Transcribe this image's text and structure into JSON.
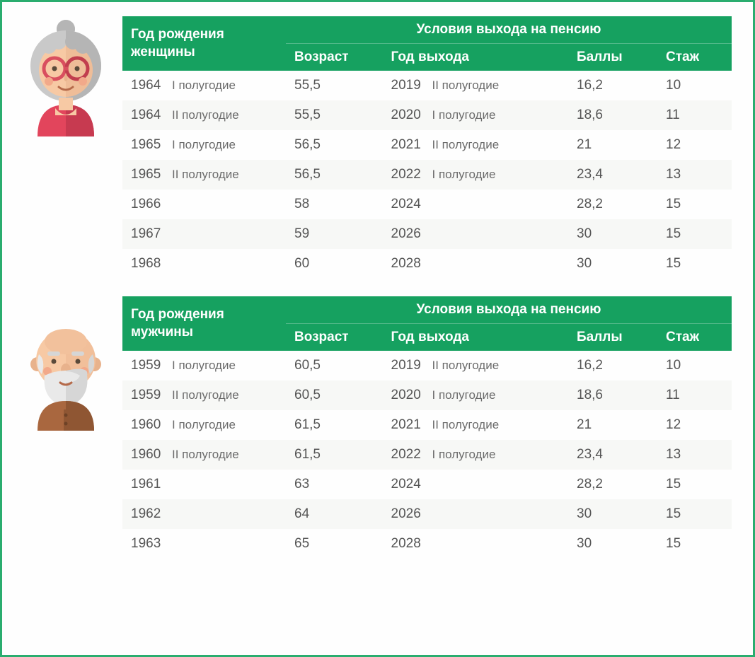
{
  "colors": {
    "frame_border": "#2aad6f",
    "header_bg": "#16a160",
    "header_text": "#ffffff",
    "row_alt_bg": "#f7f8f6",
    "cell_text": "#555555",
    "half_text": "#6b6b6b"
  },
  "tables": {
    "women": {
      "title": "Год рождения женщины",
      "group_title": "Условия выхода на пенсию",
      "columns": [
        "Возраст",
        "Год выхода",
        "Баллы",
        "Стаж"
      ],
      "rows": [
        {
          "year": "1964",
          "half": "I полугодие",
          "age": "55,5",
          "out_year": "2019",
          "out_half": "II полугодие",
          "points": "16,2",
          "stazh": "10"
        },
        {
          "year": "1964",
          "half": "II полугодие",
          "age": "55,5",
          "out_year": "2020",
          "out_half": "I полугодие",
          "points": "18,6",
          "stazh": "11"
        },
        {
          "year": "1965",
          "half": "I полугодие",
          "age": "56,5",
          "out_year": "2021",
          "out_half": "II полугодие",
          "points": "21",
          "stazh": "12"
        },
        {
          "year": "1965",
          "half": "II полугодие",
          "age": "56,5",
          "out_year": "2022",
          "out_half": "I полугодие",
          "points": "23,4",
          "stazh": "13"
        },
        {
          "year": "1966",
          "half": "",
          "age": "58",
          "out_year": "2024",
          "out_half": "",
          "points": "28,2",
          "stazh": "15"
        },
        {
          "year": "1967",
          "half": "",
          "age": "59",
          "out_year": "2026",
          "out_half": "",
          "points": "30",
          "stazh": "15"
        },
        {
          "year": "1968",
          "half": "",
          "age": "60",
          "out_year": "2028",
          "out_half": "",
          "points": "30",
          "stazh": "15"
        }
      ]
    },
    "men": {
      "title": "Год рождения мужчины",
      "group_title": "Условия выхода на пенсию",
      "columns": [
        "Возраст",
        "Год выхода",
        "Баллы",
        "Стаж"
      ],
      "rows": [
        {
          "year": "1959",
          "half": "I полугодие",
          "age": "60,5",
          "out_year": "2019",
          "out_half": "II полугодие",
          "points": "16,2",
          "stazh": "10"
        },
        {
          "year": "1959",
          "half": "II полугодие",
          "age": "60,5",
          "out_year": "2020",
          "out_half": "I полугодие",
          "points": "18,6",
          "stazh": "11"
        },
        {
          "year": "1960",
          "half": "I полугодие",
          "age": "61,5",
          "out_year": "2021",
          "out_half": "II полугодие",
          "points": "21",
          "stazh": "12"
        },
        {
          "year": "1960",
          "half": "II полугодие",
          "age": "61,5",
          "out_year": "2022",
          "out_half": "I полугодие",
          "points": "23,4",
          "stazh": "13"
        },
        {
          "year": "1961",
          "half": "",
          "age": "63",
          "out_year": "2024",
          "out_half": "",
          "points": "28,2",
          "stazh": "15"
        },
        {
          "year": "1962",
          "half": "",
          "age": "64",
          "out_year": "2026",
          "out_half": "",
          "points": "30",
          "stazh": "15"
        },
        {
          "year": "1963",
          "half": "",
          "age": "65",
          "out_year": "2028",
          "out_half": "",
          "points": "30",
          "stazh": "15"
        }
      ]
    }
  },
  "avatars": {
    "grandma": {
      "hair": "#c9c9c9",
      "hair_shadow": "#b5b5b5",
      "skin": "#f7c9a4",
      "skin_shadow": "#e8b28c",
      "glasses": "#d94f5f",
      "glasses_dark": "#c13e4e",
      "shirt": "#e2455c",
      "shirt_shadow": "#c73a50",
      "cheek": "#f2a98a",
      "mouth": "#b56a4a"
    },
    "grandpa": {
      "skin_head": "#f2c19c",
      "skin": "#f7c9a4",
      "skin_shadow": "#e8b28c",
      "beard": "#e9e9e9",
      "beard_shadow": "#d6d6d6",
      "brow": "#d6d6d6",
      "shirt": "#a9673f",
      "shirt_shadow": "#8f5633",
      "cheek": "#f2a98a",
      "mouth": "#b56a4a",
      "ear": "#e8b28c"
    }
  }
}
